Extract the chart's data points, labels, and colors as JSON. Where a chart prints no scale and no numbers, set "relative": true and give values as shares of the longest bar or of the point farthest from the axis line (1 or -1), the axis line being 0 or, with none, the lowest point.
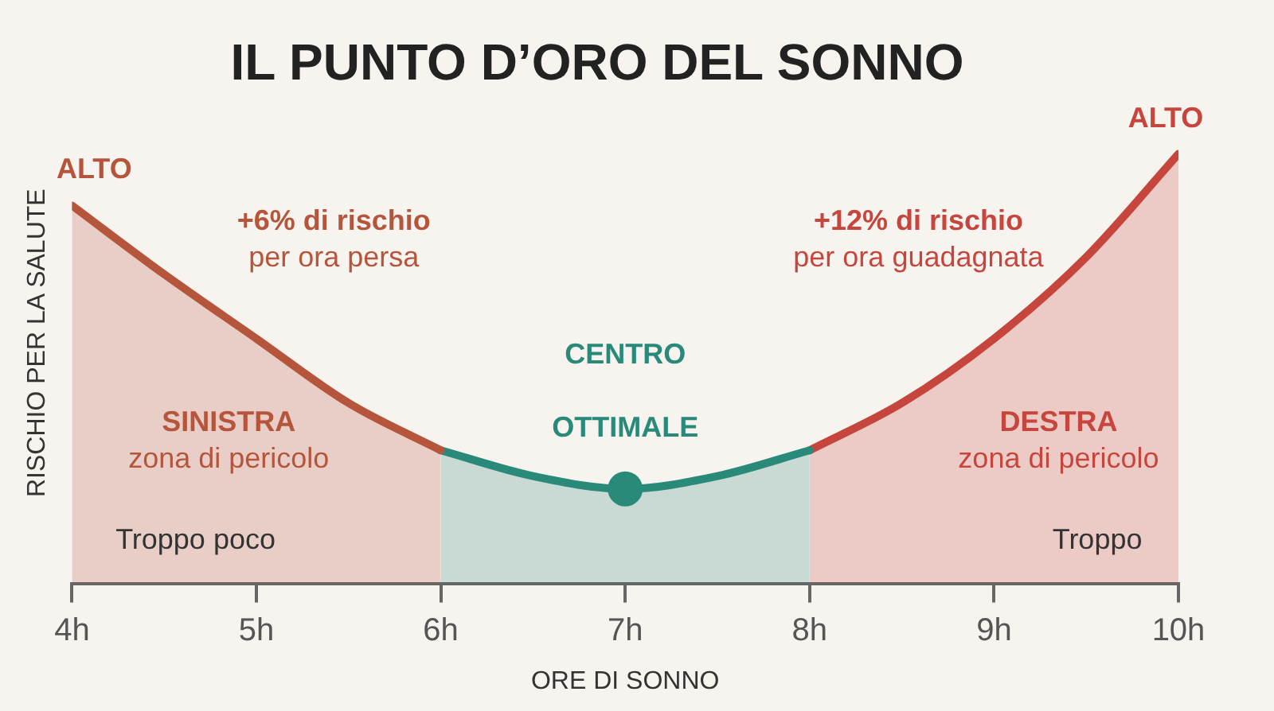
{
  "chart_data": {
    "type": "area",
    "title": "IL PUNTO D’ORO DEL SONNO",
    "xlabel": "ORE DI SONNO",
    "ylabel": "RISCHIO PER LA SALUTE",
    "relative": true,
    "legend": false,
    "grid": false,
    "marker": "none",
    "xlim": [
      4,
      10
    ],
    "xticks": [
      {
        "value": 4,
        "label": "4h"
      },
      {
        "value": 5,
        "label": "5h"
      },
      {
        "value": 6,
        "label": "6h"
      },
      {
        "value": 7,
        "label": "7h"
      },
      {
        "value": 8,
        "label": "8h"
      },
      {
        "value": 9,
        "label": "9h"
      },
      {
        "value": 10,
        "label": "10h"
      }
    ],
    "series": [
      {
        "color": "#b5553c",
        "x": [
          4,
          4.5,
          5,
          5.5,
          6
        ],
        "values": [
          0.88,
          0.72,
          0.57,
          0.42,
          0.31
        ]
      },
      {
        "color": "#2a8a7a",
        "x": [
          6,
          6.5,
          7,
          7.5,
          8
        ],
        "values": [
          0.31,
          0.25,
          0.22,
          0.25,
          0.31
        ]
      },
      {
        "color": "#c6463d",
        "x": [
          8,
          8.5,
          9,
          9.5,
          10
        ],
        "values": [
          0.31,
          0.42,
          0.57,
          0.76,
          1
        ]
      },
      {
        "type": "scatter",
        "marker": "circle",
        "color": "#2a8a7a",
        "x": [
          7
        ],
        "values": [
          0.22
        ]
      }
    ],
    "annotations": [
      {
        "text": "ALTO",
        "x": 4,
        "y": 0.88
      },
      {
        "text": "ALTO",
        "x": 10,
        "y": 1
      },
      "+6% di rischio\nper ora persa",
      "+12% di rischio\nper ora guadagnata",
      "CENTRO",
      "OTTIMALE",
      "SINISTRA\nzona di pericolo",
      "Troppo poco",
      "DESTRA\nzona di pericolo",
      "Troppo"
    ]
  }
}
